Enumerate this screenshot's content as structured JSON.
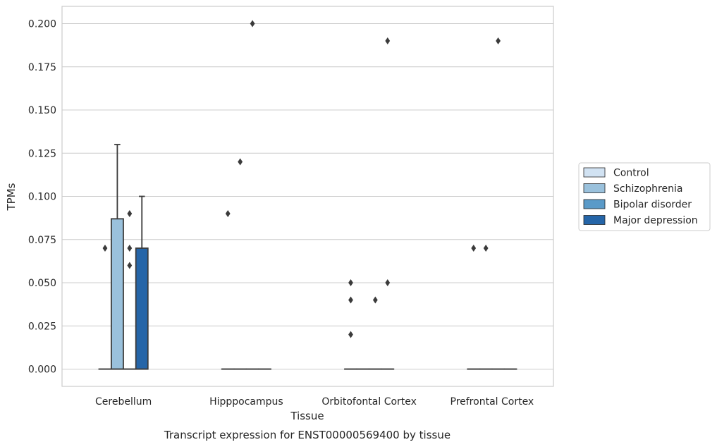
{
  "chart_data": {
    "type": "box",
    "xlabel": "Tissue",
    "ylabel": "TPMs",
    "caption": "Transcript expression for ENST00000569400 by tissue",
    "ylim": [
      -0.01,
      0.21
    ],
    "yticks": [
      "0.000",
      "0.025",
      "0.050",
      "0.075",
      "0.100",
      "0.125",
      "0.150",
      "0.175",
      "0.200"
    ],
    "ytick_values": [
      0,
      0.025,
      0.05,
      0.075,
      0.1,
      0.125,
      0.15,
      0.175,
      0.2
    ],
    "grid": true,
    "legend_position": "right",
    "categories": [
      "Cerebellum",
      "Hipppocampus",
      "Orbitofontal Cortex",
      "Prefrontal Cortex"
    ],
    "series": [
      {
        "name": "Control",
        "color": "#d1e2f2",
        "boxes": [
          {
            "q1": 0,
            "median": 0,
            "q3": 0,
            "whisker_low": 0,
            "whisker_high": 0,
            "outliers": [
              0.07
            ]
          },
          {
            "q1": 0,
            "median": 0,
            "q3": 0,
            "whisker_low": 0,
            "whisker_high": 0,
            "outliers": [
              0.09
            ]
          },
          {
            "q1": 0,
            "median": 0,
            "q3": 0,
            "whisker_low": 0,
            "whisker_high": 0,
            "outliers": [
              0.05,
              0.04,
              0.02
            ]
          },
          {
            "q1": 0,
            "median": 0,
            "q3": 0,
            "whisker_low": 0,
            "whisker_high": 0,
            "outliers": [
              0.07
            ]
          }
        ]
      },
      {
        "name": "Schizophrenia",
        "color": "#9ac1dc",
        "boxes": [
          {
            "q1": 0,
            "median": 0,
            "q3": 0.087,
            "whisker_low": 0,
            "whisker_high": 0.13,
            "outliers": []
          },
          {
            "q1": 0,
            "median": 0,
            "q3": 0,
            "whisker_low": 0,
            "whisker_high": 0,
            "outliers": [
              0.12
            ]
          },
          {
            "q1": 0,
            "median": 0,
            "q3": 0,
            "whisker_low": 0,
            "whisker_high": 0,
            "outliers": []
          },
          {
            "q1": 0,
            "median": 0,
            "q3": 0,
            "whisker_low": 0,
            "whisker_high": 0,
            "outliers": [
              0.07
            ]
          }
        ]
      },
      {
        "name": "Bipolar disorder",
        "color": "#5a9ac8",
        "boxes": [
          {
            "q1": 0,
            "median": 0,
            "q3": 0,
            "whisker_low": 0,
            "whisker_high": 0,
            "outliers": [
              0.09,
              0.07,
              0.06
            ]
          },
          {
            "q1": 0,
            "median": 0,
            "q3": 0,
            "whisker_low": 0,
            "whisker_high": 0,
            "outliers": [
              0.2
            ]
          },
          {
            "q1": 0,
            "median": 0,
            "q3": 0,
            "whisker_low": 0,
            "whisker_high": 0,
            "outliers": [
              0.04
            ]
          },
          {
            "q1": 0,
            "median": 0,
            "q3": 0,
            "whisker_low": 0,
            "whisker_high": 0,
            "outliers": [
              0.19
            ]
          }
        ]
      },
      {
        "name": "Major depression",
        "color": "#2565a8",
        "boxes": [
          {
            "q1": 0,
            "median": 0,
            "q3": 0.07,
            "whisker_low": 0,
            "whisker_high": 0.1,
            "outliers": []
          },
          {
            "q1": 0,
            "median": 0,
            "q3": 0,
            "whisker_low": 0,
            "whisker_high": 0,
            "outliers": []
          },
          {
            "q1": 0,
            "median": 0,
            "q3": 0,
            "whisker_low": 0,
            "whisker_high": 0,
            "outliers": [
              0.19,
              0.05
            ]
          },
          {
            "q1": 0,
            "median": 0,
            "q3": 0,
            "whisker_low": 0,
            "whisker_high": 0,
            "outliers": []
          }
        ]
      }
    ]
  }
}
